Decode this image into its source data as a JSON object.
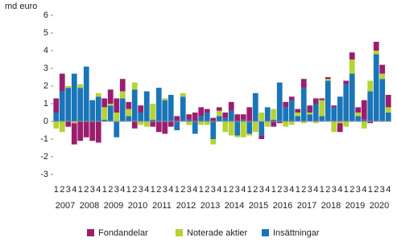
{
  "chart_data": {
    "type": "stacked_bar",
    "y_axis_label": "md euro",
    "categories": [
      "1",
      "2",
      "3",
      "4",
      "1",
      "2",
      "3",
      "4",
      "1",
      "2",
      "3",
      "4",
      "1",
      "2",
      "3",
      "4",
      "1",
      "2",
      "3",
      "4",
      "1",
      "2",
      "3",
      "4",
      "1",
      "2",
      "3",
      "4",
      "1",
      "2",
      "3",
      "4",
      "1",
      "2",
      "3",
      "4",
      "1",
      "2",
      "3",
      "4",
      "1",
      "2",
      "3",
      "4",
      "1",
      "2",
      "3",
      "4",
      "1",
      "2",
      "3",
      "4",
      "1",
      "2",
      "3",
      "4"
    ],
    "years": [
      2007,
      2008,
      2009,
      2010,
      2011,
      2012,
      2013,
      2014,
      2015,
      2016,
      2017,
      2018,
      2019,
      2020
    ],
    "series": [
      {
        "name": "Fondandelar",
        "color": "#9b1d6e",
        "values": [
          0.8,
          1.0,
          -0.3,
          -1.2,
          -1.1,
          -0.9,
          -1.1,
          -1.2,
          0.5,
          0.8,
          0.8,
          0.7,
          0.4,
          -0.4,
          0.4,
          0.0,
          -0.3,
          -0.6,
          -0.7,
          -0.3,
          0.3,
          0.0,
          0.3,
          0.5,
          0.5,
          0.2,
          0.2,
          0.2,
          0.3,
          0.5,
          0.4,
          0.3,
          0.8,
          0.0,
          -0.2,
          0.0,
          -0.3,
          -0.1,
          0.3,
          0.2,
          0.2,
          0.5,
          0.4,
          0.3,
          0.1,
          0.1,
          0.1,
          -0.5,
          0.2,
          0.4,
          0.3,
          1.1,
          -0.1,
          0.5,
          0.5,
          0.7
        ]
      },
      {
        "name": "Noterade aktier",
        "color": "#b5d334",
        "values": [
          -0.4,
          -0.6,
          0.1,
          -0.1,
          0.2,
          0.0,
          0.0,
          0.2,
          0.7,
          0.1,
          0.5,
          0.4,
          0.4,
          0.4,
          -0.2,
          -0.3,
          0.9,
          0.0,
          0.1,
          0.0,
          0.0,
          0.2,
          -0.2,
          0.0,
          -0.2,
          -0.2,
          -0.3,
          0.3,
          -0.6,
          -0.8,
          -0.1,
          -0.9,
          -0.1,
          -0.6,
          0.5,
          -0.3,
          0.6,
          0.0,
          -0.3,
          -0.2,
          0.2,
          -0.1,
          0.1,
          -0.1,
          0.9,
          0.1,
          -0.6,
          -0.1,
          -0.3,
          0.8,
          0.2,
          -0.4,
          0.6,
          0.2,
          0.3,
          0.3
        ]
      },
      {
        "name": "Insättningar",
        "color": "#1a75b8",
        "values": [
          0.5,
          1.7,
          1.9,
          2.7,
          1.9,
          3.1,
          1.2,
          1.4,
          0.1,
          0.9,
          -0.9,
          1.3,
          0.3,
          1.8,
          0.5,
          1.7,
          0.1,
          1.9,
          1.2,
          1.5,
          -0.5,
          1.4,
          0.1,
          -0.7,
          0.3,
          0.5,
          -1.0,
          0.3,
          0.2,
          0.6,
          -0.8,
          0.1,
          -0.7,
          1.6,
          -0.8,
          0.8,
          0.1,
          2.2,
          0.8,
          1.2,
          0.3,
          1.9,
          0.4,
          1.0,
          0.3,
          2.3,
          0.8,
          1.4,
          2.1,
          2.7,
          0.3,
          0.1,
          1.7,
          3.8,
          2.4,
          0.5
        ]
      }
    ],
    "ylim": [
      -3,
      6
    ],
    "yticks": [
      -3,
      -2,
      -1,
      0,
      1,
      2,
      3,
      4,
      5,
      6
    ]
  }
}
